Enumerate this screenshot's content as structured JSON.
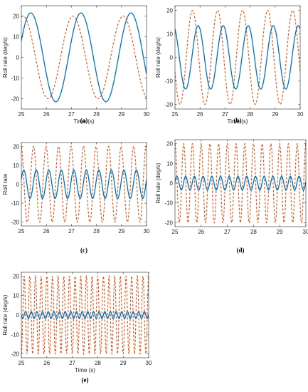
{
  "chart_data": [
    {
      "id": "a",
      "caption": "(a)",
      "type": "line",
      "xlabel": "Time (s)",
      "ylabel": "Roll rate (deg/s)",
      "xlim": [
        25,
        30
      ],
      "ylim": [
        -25,
        25
      ],
      "xticks": [
        "25",
        "26",
        "27",
        "28",
        "29",
        "30"
      ],
      "yticks": [
        "-20",
        "-10",
        "0",
        "10",
        "20"
      ],
      "grid": false,
      "series": [
        {
          "role": "reference",
          "color": "#D95319",
          "style": "dashed",
          "amplitude": 20,
          "frequency_hz": 0.5,
          "phase_deg": 258
        },
        {
          "role": "response",
          "color": "#0072BD",
          "style": "solid",
          "amplitude": 21.5,
          "frequency_hz": 0.5,
          "phase_deg": 202
        }
      ]
    },
    {
      "id": "b",
      "caption": "(b)",
      "type": "line",
      "xlabel": "Time (s)",
      "ylabel": "Roll rate (deg/s)",
      "xlim": [
        25,
        30
      ],
      "ylim": [
        -22,
        22
      ],
      "xticks": [
        "25",
        "26",
        "27",
        "28",
        "29",
        "30"
      ],
      "yticks": [
        "-20",
        "-10",
        "0",
        "10",
        "20"
      ],
      "grid": false,
      "series": [
        {
          "role": "reference",
          "color": "#D95319",
          "style": "dashed",
          "amplitude": 20,
          "frequency_hz": 1.0,
          "phase_deg": 198
        },
        {
          "role": "response",
          "color": "#0072BD",
          "style": "solid",
          "amplitude": 13.5,
          "frequency_hz": 1.0,
          "phase_deg": 117
        }
      ]
    },
    {
      "id": "c",
      "caption": "(c)",
      "type": "line",
      "xlabel": "",
      "ylabel": "Roll rate",
      "xlim": [
        25,
        30
      ],
      "ylim": [
        -22,
        22
      ],
      "xticks": [
        "25",
        "26",
        "27",
        "28",
        "29",
        "30"
      ],
      "yticks": [
        "-20",
        "-10",
        "0",
        "10",
        "20"
      ],
      "grid": false,
      "series": [
        {
          "role": "reference",
          "color": "#D95319",
          "style": "dashed",
          "amplitude": 20,
          "frequency_hz": 2.0,
          "phase_deg": 100
        },
        {
          "role": "response",
          "color": "#0072BD",
          "style": "solid",
          "amplitude": 7.5,
          "frequency_hz": 2.0,
          "phase_deg": 20
        }
      ]
    },
    {
      "id": "d",
      "caption": "(d)",
      "type": "line",
      "xlabel": "",
      "ylabel": "Roll rate (deg/s)",
      "xlim": [
        25,
        30
      ],
      "ylim": [
        -22,
        22
      ],
      "xticks": [
        "25",
        "26",
        "27",
        "28",
        "29",
        "30"
      ],
      "yticks": [
        "-20",
        "-10",
        "0",
        "10",
        "20"
      ],
      "grid": false,
      "series": [
        {
          "role": "reference",
          "color": "#D95319",
          "style": "dashed",
          "amplitude": 20,
          "frequency_hz": 3.0,
          "phase_deg": 90
        },
        {
          "role": "response",
          "color": "#0072BD",
          "style": "solid",
          "amplitude": 3.5,
          "frequency_hz": 3.0,
          "phase_deg": 10
        }
      ]
    },
    {
      "id": "e",
      "caption": "(e)",
      "type": "line",
      "xlabel": "Time (s)",
      "ylabel": "Roll rate (deg/s)",
      "xlim": [
        25,
        30
      ],
      "ylim": [
        -22,
        22
      ],
      "xticks": [
        "25",
        "26",
        "27",
        "28",
        "29",
        "30"
      ],
      "yticks": [
        "-20",
        "-10",
        "0",
        "10",
        "20"
      ],
      "grid": false,
      "series": [
        {
          "role": "reference",
          "color": "#D95319",
          "style": "dashed",
          "amplitude": 20,
          "frequency_hz": 4.5,
          "phase_deg": 90
        },
        {
          "role": "response",
          "color": "#0072BD",
          "style": "solid",
          "amplitude": 1.8,
          "frequency_hz": 4.5,
          "phase_deg": 0
        }
      ]
    }
  ]
}
